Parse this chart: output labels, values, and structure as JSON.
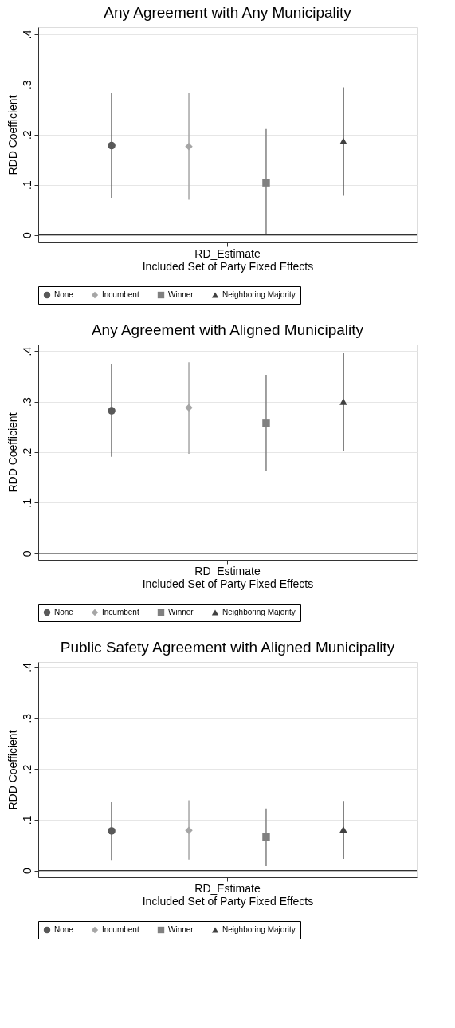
{
  "chart_data": [
    {
      "type": "scatter",
      "title": "Any Agreement with Any Municipality",
      "xlabel": "Included Set of Party Fixed Effects",
      "ylabel": "RDD Coefficient",
      "categories": [
        "RD_Estimate"
      ],
      "ylim": [
        -0.015,
        0.414
      ],
      "yticks": [
        {
          "value": 0,
          "label": "0"
        },
        {
          "value": 0.1,
          "label": ".1"
        },
        {
          "value": 0.2,
          "label": ".2"
        },
        {
          "value": 0.3,
          "label": ".3"
        },
        {
          "value": 0.4,
          "label": ".4"
        }
      ],
      "grid": "y",
      "legend": "bottom",
      "ref_lines": [
        {
          "axis": "y",
          "value": 0,
          "color": "#333333"
        }
      ],
      "series": [
        {
          "name": "None",
          "color": "#595959",
          "marker": "circle",
          "values": [
            0.178
          ],
          "errors": [
            [
              0.074,
              0.283
            ]
          ]
        },
        {
          "name": "Incumbent",
          "color": "#a6a6a6",
          "marker": "diamond",
          "values": [
            0.176
          ],
          "errors": [
            [
              0.07,
              0.282
            ]
          ]
        },
        {
          "name": "Winner",
          "color": "#808080",
          "marker": "square",
          "values": [
            0.104
          ],
          "errors": [
            [
              0.0,
              0.211
            ]
          ]
        },
        {
          "name": "Neighboring Majority",
          "color": "#404040",
          "marker": "triangle",
          "values": [
            0.187
          ],
          "errors": [
            [
              0.078,
              0.294
            ]
          ]
        }
      ]
    },
    {
      "type": "scatter",
      "title": "Any Agreement with  Aligned Municipality",
      "xlabel": "Included Set of Party Fixed Effects",
      "ylabel": "RDD Coefficient",
      "categories": [
        "RD_Estimate"
      ],
      "ylim": [
        -0.013,
        0.413
      ],
      "yticks": [
        {
          "value": 0,
          "label": "0"
        },
        {
          "value": 0.1,
          "label": ".1"
        },
        {
          "value": 0.2,
          "label": ".2"
        },
        {
          "value": 0.3,
          "label": ".3"
        },
        {
          "value": 0.4,
          "label": ".4"
        }
      ],
      "grid": "y",
      "legend": "bottom",
      "ref_lines": [
        {
          "axis": "y",
          "value": 0,
          "color": "#333333"
        }
      ],
      "series": [
        {
          "name": "None",
          "color": "#595959",
          "marker": "circle",
          "values": [
            0.282
          ],
          "errors": [
            [
              0.191,
              0.374
            ]
          ]
        },
        {
          "name": "Incumbent",
          "color": "#a6a6a6",
          "marker": "diamond",
          "values": [
            0.288
          ],
          "errors": [
            [
              0.197,
              0.378
            ]
          ]
        },
        {
          "name": "Winner",
          "color": "#808080",
          "marker": "square",
          "values": [
            0.257
          ],
          "errors": [
            [
              0.162,
              0.353
            ]
          ]
        },
        {
          "name": "Neighboring Majority",
          "color": "#404040",
          "marker": "triangle",
          "values": [
            0.3
          ],
          "errors": [
            [
              0.203,
              0.396
            ]
          ]
        }
      ]
    },
    {
      "type": "scatter",
      "title": "Public Safety Agreement with Aligned Municipality",
      "xlabel": "Included Set of Party Fixed Effects",
      "ylabel": "RDD Coefficient",
      "categories": [
        "RD_Estimate"
      ],
      "ylim": [
        -0.013,
        0.41
      ],
      "yticks": [
        {
          "value": 0,
          "label": "0"
        },
        {
          "value": 0.1,
          "label": ".1"
        },
        {
          "value": 0.2,
          "label": ".2"
        },
        {
          "value": 0.3,
          "label": ".3"
        },
        {
          "value": 0.4,
          "label": ".4"
        }
      ],
      "grid": "y",
      "legend": "bottom",
      "ref_lines": [
        {
          "axis": "y",
          "value": 0,
          "color": "#333333"
        }
      ],
      "series": [
        {
          "name": "None",
          "color": "#595959",
          "marker": "circle",
          "values": [
            0.078
          ],
          "errors": [
            [
              0.021,
              0.135
            ]
          ]
        },
        {
          "name": "Incumbent",
          "color": "#a6a6a6",
          "marker": "diamond",
          "values": [
            0.079
          ],
          "errors": [
            [
              0.022,
              0.138
            ]
          ]
        },
        {
          "name": "Winner",
          "color": "#808080",
          "marker": "square",
          "values": [
            0.066
          ],
          "errors": [
            [
              0.009,
              0.122
            ]
          ]
        },
        {
          "name": "Neighboring Majority",
          "color": "#404040",
          "marker": "triangle",
          "values": [
            0.081
          ],
          "errors": [
            [
              0.023,
              0.137
            ]
          ]
        }
      ]
    }
  ]
}
